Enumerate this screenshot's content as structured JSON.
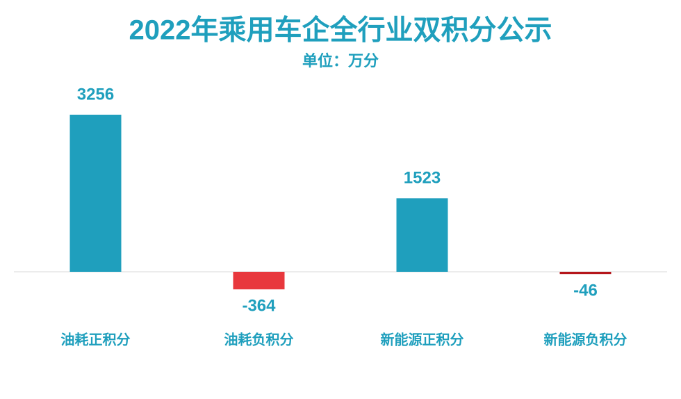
{
  "chart_data": {
    "type": "bar",
    "title": "2022年乘用车企全行业双积分公示",
    "subtitle": "单位：万分",
    "categories": [
      "油耗正积分",
      "油耗负积分",
      "新能源正积分",
      "新能源负积分"
    ],
    "values": [
      3256,
      -364,
      1523,
      -46
    ],
    "colors": [
      "#1f9fbd",
      "#e8383d",
      "#1f9fbd",
      "#b5161b"
    ],
    "label_color": "#1f9fbd"
  }
}
